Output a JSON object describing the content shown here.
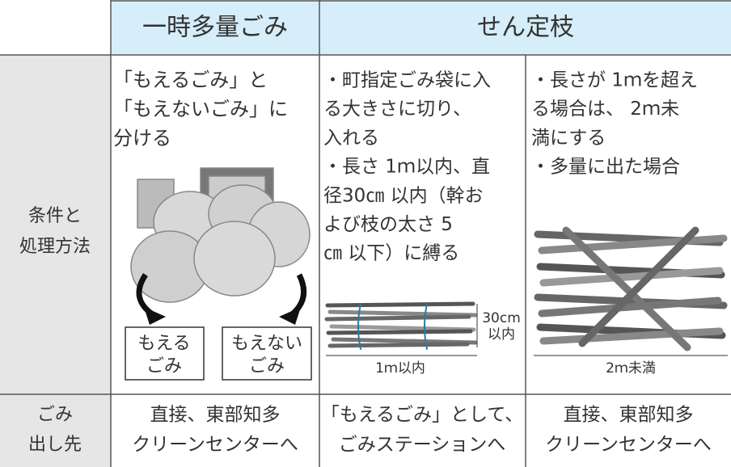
{
  "table": {
    "header": [
      "一時多量ごみ",
      "せん定枝"
    ],
    "conditions": {
      "label": [
        "条件と",
        "処理方法"
      ],
      "waste_text": [
        "「もえるごみ」と",
        "「もえないごみ」に",
        "分ける"
      ],
      "waste_boxes": [
        [
          "もえる",
          "ごみ"
        ],
        [
          "もえない",
          "ごみ"
        ]
      ],
      "branch_short_text": [
        "・町指定ごみ袋に入",
        "る大きさに切り、",
        "入れる",
        "・長さ 1ｍ以内、直",
        "径30㎝ 以内（幹お",
        "よび枝の太さ 5",
        "㎝ 以下）に縛る"
      ],
      "branch_short_size": [
        "30cm",
        "以内"
      ],
      "branch_short_length": "1ｍ以内",
      "branch_long_text": [
        "・長さが 1ｍを超え",
        "る場合は、 2ｍ未",
        "満にする",
        "・多量に出た場合"
      ],
      "branch_long_length": "2ｍ未満"
    },
    "destination": {
      "label": [
        "ごみ",
        "出し先"
      ],
      "cells": [
        [
          "直接、東部知多",
          "クリーンセンターへ"
        ],
        [
          "「もえるごみ」として、",
          "ごみステーションへ"
        ],
        [
          "直接、東部知多",
          "クリーンセンターへ"
        ]
      ]
    }
  }
}
